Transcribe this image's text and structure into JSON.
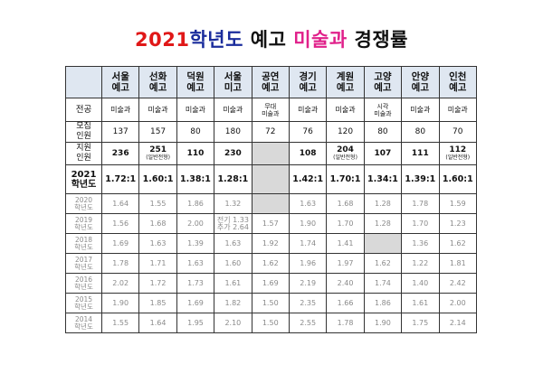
{
  "title": {
    "year": "2021",
    "part1": "학년도",
    "part2": "예고",
    "part3": "미술과",
    "part4": "경쟁률"
  },
  "schools": [
    "서울\n예고",
    "선화\n예고",
    "덕원\n예고",
    "서울\n미고",
    "공연\n예고",
    "경기\n예고",
    "계원\n예고",
    "고양\n예고",
    "안양\n예고",
    "인천\n예고"
  ],
  "rows": {
    "major": {
      "label": "전공",
      "values": [
        "미술과",
        "미술과",
        "미술과",
        "미술과",
        "무대\n미술과",
        "미술과",
        "미술과",
        "시각\n미술과",
        "미술과",
        "미술과"
      ]
    },
    "quota": {
      "label": "모집\n인원",
      "values": [
        "137",
        "157",
        "80",
        "180",
        "72",
        "76",
        "120",
        "80",
        "80",
        "70"
      ]
    },
    "applicants": {
      "label": "지원\n인원",
      "values": [
        "236",
        "251",
        "110",
        "230",
        "",
        "108",
        "204",
        "107",
        "111",
        "112"
      ],
      "subs": [
        "",
        "(일반전형)",
        "",
        "",
        "",
        "",
        "(일반전형)",
        "",
        "",
        "(일반전형)"
      ]
    },
    "y2021": {
      "label": "2021\n학년도",
      "values": [
        "1.72:1",
        "1.60:1",
        "1.38:1",
        "1.28:1",
        "",
        "1.42:1",
        "1.70:1",
        "1.34:1",
        "1.39:1",
        "1.60:1"
      ]
    }
  },
  "history": [
    {
      "label": "2020\n학년도",
      "values": [
        "1.64",
        "1.55",
        "1.86",
        "1.32",
        "",
        "1.63",
        "1.68",
        "1.28",
        "1.78",
        "1.59"
      ]
    },
    {
      "label": "2019\n학년도",
      "values": [
        "1.56",
        "1.68",
        "2.00",
        "전기 1.33\n추가 2.64",
        "1.57",
        "1.90",
        "1.70",
        "1.28",
        "1.70",
        "1.23"
      ]
    },
    {
      "label": "2018\n학년도",
      "values": [
        "1.69",
        "1.63",
        "1.39",
        "1.63",
        "1.92",
        "1.74",
        "1.41",
        "",
        "1.36",
        "1.62"
      ]
    },
    {
      "label": "2017\n학년도",
      "values": [
        "1.78",
        "1.71",
        "1.63",
        "1.60",
        "1.62",
        "1.96",
        "1.97",
        "1.62",
        "1.22",
        "1.81"
      ]
    },
    {
      "label": "2016\n학년도",
      "values": [
        "2.02",
        "1.72",
        "1.73",
        "1.61",
        "1.69",
        "2.19",
        "2.40",
        "1.74",
        "1.40",
        "2.42"
      ]
    },
    {
      "label": "2015\n학년도",
      "values": [
        "1.90",
        "1.85",
        "1.69",
        "1.82",
        "1.50",
        "2.35",
        "1.66",
        "1.86",
        "1.61",
        "2.00"
      ]
    },
    {
      "label": "2014\n학년도",
      "values": [
        "1.55",
        "1.64",
        "1.95",
        "2.10",
        "1.50",
        "2.55",
        "1.78",
        "1.90",
        "1.75",
        "2.14"
      ]
    }
  ]
}
